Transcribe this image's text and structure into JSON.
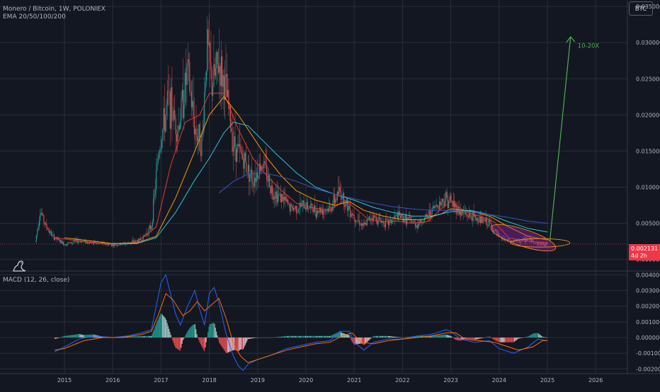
{
  "header": {
    "symbol_line": "Monero / Bitcoin, 1W, POLONIEX",
    "ema_line": "EMA 20/50/100/200",
    "macd_line": "MACD (12, 26, close)"
  },
  "currency_badge": "BTC",
  "price_tag": {
    "price": "0.002131",
    "countdown": "4d 2h"
  },
  "annotation": {
    "text": "10-20X"
  },
  "colors": {
    "background": "#131722",
    "grid": "#2a2e39",
    "candle_up": "#26a69a",
    "candle_down": "#ef5350",
    "ema20": "#e53935",
    "ema50": "#ff9800",
    "ema100": "#26c6da",
    "ema200": "#3f51b5",
    "macd": "#2962ff",
    "signal": "#ff6d00",
    "arrow": "#4caf50",
    "highlight": "#9c27b0"
  },
  "chart_data": [
    {
      "type": "line",
      "pane": "price",
      "x_ticks": [
        "2015",
        "2016",
        "2017",
        "2018",
        "2019",
        "2020",
        "2021",
        "2022",
        "2023",
        "2024",
        "2025",
        "2026"
      ],
      "y_ticks": [
        "0.035000",
        "0.030000",
        "0.025000",
        "0.020000",
        "0.015000",
        "0.010000",
        "0.005000",
        "0.000000"
      ],
      "ylim": [
        -0.0015,
        0.0355
      ],
      "price_line": {
        "x": [
          2014.4,
          2014.5,
          2014.6,
          2014.75,
          2015.0,
          2015.3,
          2015.6,
          2016.0,
          2016.3,
          2016.6,
          2016.8,
          2016.95,
          2017.15,
          2017.35,
          2017.55,
          2017.7,
          2017.85,
          2017.95,
          2018.05,
          2018.2,
          2018.35,
          2018.5,
          2018.7,
          2018.9,
          2019.1,
          2019.3,
          2019.5,
          2019.7,
          2020.0,
          2020.2,
          2020.5,
          2020.7,
          2020.85,
          2021.0,
          2021.2,
          2021.35,
          2021.5,
          2021.7,
          2021.9,
          2022.1,
          2022.3,
          2022.5,
          2022.7,
          2022.9,
          2023.0,
          2023.2,
          2023.4,
          2023.6,
          2023.8,
          2024.0,
          2024.2,
          2024.4,
          2024.6,
          2024.8,
          2025.0
        ],
        "y": [
          0.0025,
          0.0068,
          0.0048,
          0.0032,
          0.0021,
          0.0026,
          0.0023,
          0.002,
          0.0022,
          0.0028,
          0.0045,
          0.015,
          0.022,
          0.018,
          0.026,
          0.018,
          0.016,
          0.03,
          0.024,
          0.027,
          0.023,
          0.016,
          0.014,
          0.011,
          0.0135,
          0.0095,
          0.0085,
          0.007,
          0.0075,
          0.0068,
          0.007,
          0.0095,
          0.0075,
          0.006,
          0.0045,
          0.006,
          0.0055,
          0.005,
          0.006,
          0.0055,
          0.0048,
          0.0058,
          0.0075,
          0.0085,
          0.008,
          0.0065,
          0.006,
          0.0055,
          0.005,
          0.003,
          0.0025,
          0.0025,
          0.0028,
          0.0022,
          0.0021
        ]
      },
      "series": [
        {
          "x": [
            2014.8,
            2015.5,
            2016.0,
            2016.5,
            2016.9,
            2017.2,
            2017.5,
            2017.8,
            2018.0,
            2018.3,
            2018.6,
            2018.9,
            2019.2,
            2019.5,
            2019.8,
            2020.1,
            2020.5,
            2020.8,
            2021.0,
            2021.3,
            2021.6,
            2021.9,
            2022.2,
            2022.5,
            2022.8,
            2023.0,
            2023.3,
            2023.6,
            2023.9,
            2024.2,
            2024.5,
            2024.8,
            2025.0
          ],
          "y": [
            0.003,
            0.0024,
            0.0021,
            0.0024,
            0.0045,
            0.013,
            0.019,
            0.02,
            0.023,
            0.023,
            0.018,
            0.014,
            0.0115,
            0.0095,
            0.0078,
            0.0072,
            0.0068,
            0.0082,
            0.0072,
            0.0055,
            0.0052,
            0.0053,
            0.005,
            0.0052,
            0.007,
            0.008,
            0.0066,
            0.006,
            0.0052,
            0.003,
            0.0026,
            0.0024,
            0.0023
          ]
        },
        {
          "x": [
            2015.0,
            2015.5,
            2016.0,
            2016.5,
            2016.9,
            2017.3,
            2017.7,
            2018.0,
            2018.3,
            2018.6,
            2018.9,
            2019.2,
            2019.5,
            2019.8,
            2020.2,
            2020.6,
            2020.9,
            2021.2,
            2021.6,
            2022.0,
            2022.4,
            2022.8,
            2023.0,
            2023.4,
            2023.8,
            2024.2,
            2024.6,
            2025.0
          ],
          "y": [
            0.003,
            0.0026,
            0.0022,
            0.0023,
            0.0032,
            0.0085,
            0.015,
            0.02,
            0.0225,
            0.02,
            0.017,
            0.014,
            0.0115,
            0.0095,
            0.0082,
            0.0075,
            0.008,
            0.0068,
            0.006,
            0.0055,
            0.0055,
            0.0063,
            0.007,
            0.0067,
            0.006,
            0.0045,
            0.0032,
            0.0027
          ]
        },
        {
          "x": [
            2016.0,
            2016.5,
            2016.9,
            2017.3,
            2017.7,
            2018.0,
            2018.3,
            2018.5,
            2018.8,
            2019.1,
            2019.4,
            2019.8,
            2020.2,
            2020.6,
            2021.0,
            2021.4,
            2021.8,
            2022.2,
            2022.6,
            2023.0,
            2023.4,
            2023.8,
            2024.2,
            2024.6,
            2025.0
          ],
          "y": [
            0.0022,
            0.0022,
            0.003,
            0.0065,
            0.011,
            0.014,
            0.0175,
            0.019,
            0.0185,
            0.0165,
            0.0145,
            0.012,
            0.01,
            0.009,
            0.0082,
            0.0072,
            0.0065,
            0.006,
            0.006,
            0.0066,
            0.0068,
            0.0062,
            0.0052,
            0.0043,
            0.0038
          ]
        },
        {
          "x": [
            2018.2,
            2018.5,
            2018.8,
            2019.1,
            2019.4,
            2019.8,
            2020.2,
            2020.6,
            2021.0,
            2021.4,
            2021.8,
            2022.2,
            2022.6,
            2023.0,
            2023.4,
            2023.8,
            2024.2,
            2024.6,
            2025.0
          ],
          "y": [
            0.0092,
            0.0108,
            0.0118,
            0.012,
            0.0116,
            0.0108,
            0.0098,
            0.009,
            0.0084,
            0.0078,
            0.0073,
            0.007,
            0.0068,
            0.0068,
            0.0066,
            0.0062,
            0.0058,
            0.0053,
            0.005
          ]
        }
      ],
      "annotations": {
        "arrow_from": [
          2025.05,
          0.0025
        ],
        "arrow_to": [
          2025.48,
          0.0308
        ],
        "label_at": [
          2025.85,
          0.0293
        ],
        "ellipse_center": [
          2024.5,
          0.003
        ]
      }
    },
    {
      "type": "line",
      "pane": "macd",
      "y_ticks": [
        "0.004000",
        "0.003000",
        "0.002000",
        "0.001000",
        "0.000000",
        "-0.001000",
        "-0.002000"
      ],
      "ylim": [
        -0.0023,
        0.0042
      ],
      "macd": {
        "x": [
          2014.8,
          2015.0,
          2015.3,
          2015.6,
          2016.0,
          2016.3,
          2016.6,
          2016.8,
          2016.9,
          2017.0,
          2017.1,
          2017.3,
          2017.4,
          2017.55,
          2017.7,
          2017.8,
          2017.9,
          2018.0,
          2018.1,
          2018.2,
          2018.35,
          2018.5,
          2018.6,
          2018.7,
          2018.8,
          2019.0,
          2019.3,
          2019.6,
          2019.9,
          2020.2,
          2020.5,
          2020.7,
          2020.9,
          2021.0,
          2021.2,
          2021.4,
          2021.7,
          2022.0,
          2022.3,
          2022.6,
          2022.9,
          2023.0,
          2023.2,
          2023.5,
          2023.8,
          2024.0,
          2024.3,
          2024.6,
          2024.8,
          2025.0
        ],
        "y": [
          -0.0009,
          -0.0006,
          -0.0001,
          0.0001,
          0.0,
          0.0001,
          0.0003,
          0.0005,
          0.002,
          0.0035,
          0.004,
          0.0015,
          0.0008,
          0.002,
          0.003,
          0.0018,
          0.0008,
          0.0028,
          0.0032,
          0.0022,
          0.0002,
          -0.0012,
          -0.0018,
          -0.0021,
          -0.0017,
          -0.0014,
          -0.0011,
          -0.0007,
          -0.0005,
          -0.0003,
          -0.0002,
          0.0004,
          0.0004,
          -0.0003,
          -0.0008,
          -0.0003,
          -0.0001,
          -0.0001,
          0.0001,
          0.0002,
          0.0005,
          0.0004,
          -0.0001,
          -0.0003,
          -0.0002,
          -0.0007,
          -0.001,
          -0.0006,
          -0.0001,
          -0.0002
        ]
      },
      "signal": {
        "x": [
          2014.8,
          2015.0,
          2015.4,
          2015.8,
          2016.2,
          2016.6,
          2016.8,
          2016.95,
          2017.1,
          2017.25,
          2017.45,
          2017.6,
          2017.75,
          2017.9,
          2018.05,
          2018.2,
          2018.35,
          2018.5,
          2018.65,
          2018.8,
          2019.0,
          2019.3,
          2019.6,
          2019.9,
          2020.2,
          2020.5,
          2020.75,
          2020.95,
          2021.15,
          2021.4,
          2021.7,
          2022.0,
          2022.3,
          2022.6,
          2022.9,
          2023.1,
          2023.3,
          2023.6,
          2023.9,
          2024.1,
          2024.4,
          2024.7,
          2024.9,
          2025.0
        ],
        "y": [
          -0.0008,
          -0.0007,
          -0.0002,
          0.0,
          0.0,
          0.0002,
          0.0004,
          0.0015,
          0.0028,
          0.0024,
          0.0014,
          0.0017,
          0.0023,
          0.0017,
          0.0021,
          0.0025,
          0.0012,
          -0.0004,
          -0.0012,
          -0.0016,
          -0.0014,
          -0.0011,
          -0.0008,
          -0.0006,
          -0.0004,
          -0.0003,
          0.0001,
          0.0003,
          -0.0003,
          -0.0004,
          -0.0002,
          -0.0001,
          0.0,
          0.0001,
          0.0003,
          0.0003,
          -0.0001,
          -0.0002,
          -0.0003,
          -0.0005,
          -0.0008,
          -0.0006,
          -0.0002,
          -0.0002
        ]
      }
    }
  ]
}
